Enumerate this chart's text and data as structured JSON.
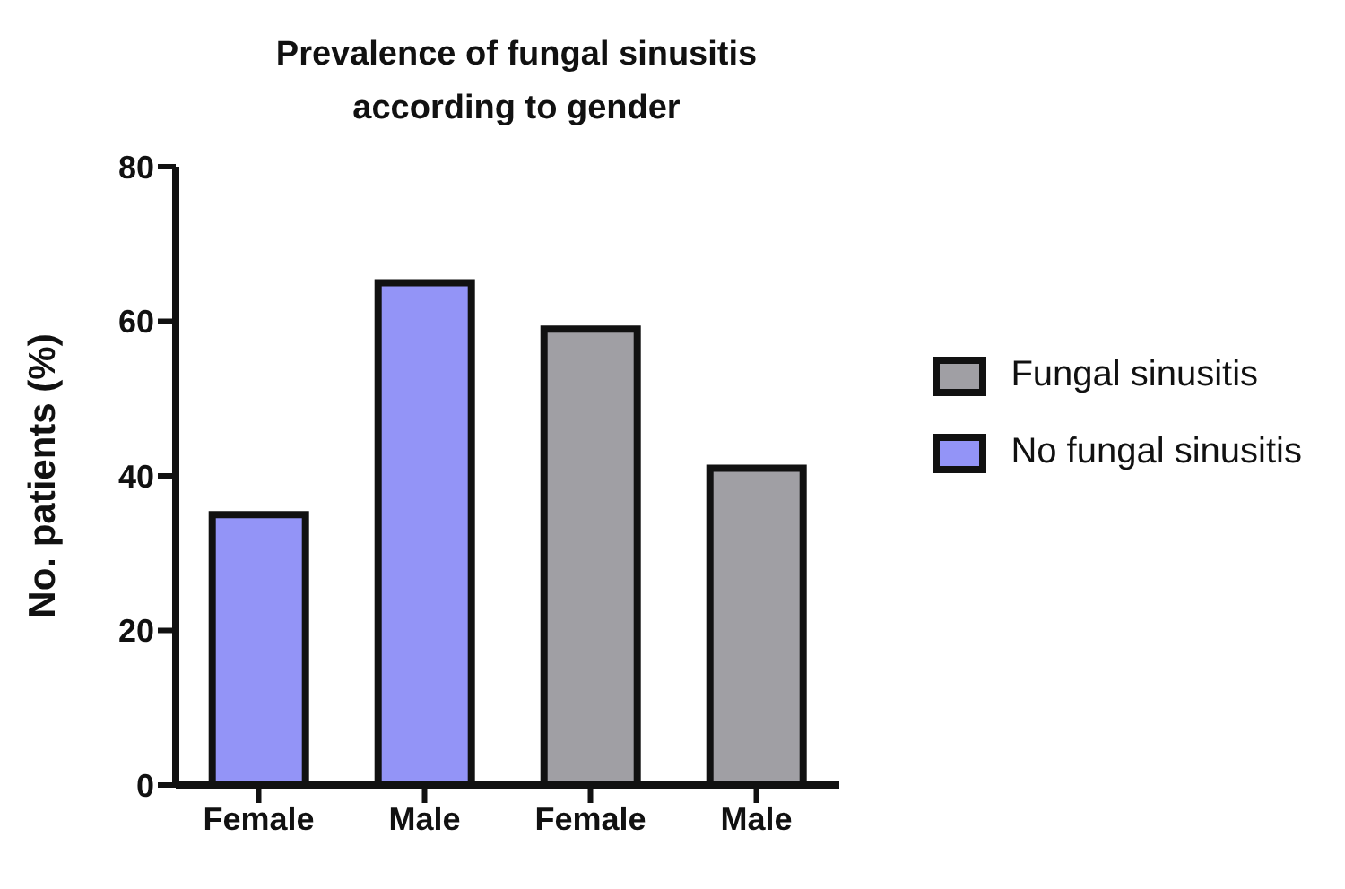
{
  "chart_data": {
    "type": "bar",
    "title": "Prevalence of fungal sinusitis\naccording to gender",
    "ylabel": "No. patients (%)",
    "categories": [
      "Female",
      "Male",
      "Female",
      "Male"
    ],
    "series": [
      {
        "name": "Fungal sinusitis",
        "color": "#a09fa4",
        "values": [
          null,
          null,
          59,
          41
        ]
      },
      {
        "name": "No fungal sinusitis",
        "color": "#9394f7",
        "values": [
          35,
          65,
          null,
          null
        ]
      }
    ],
    "ylim": [
      0,
      80
    ],
    "yticks": [
      0,
      20,
      40,
      60,
      80
    ],
    "grid": false,
    "legend": "right"
  }
}
